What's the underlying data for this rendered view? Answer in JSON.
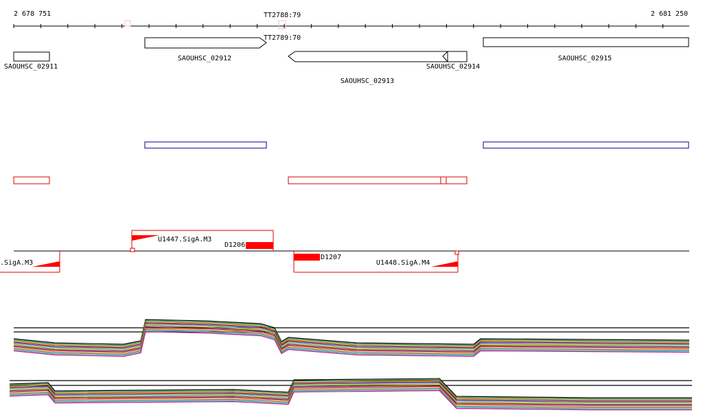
{
  "ruler": {
    "start": "2 678 751",
    "end": "2 681 250",
    "markers": [
      "TT2788:79",
      "TT2789:70"
    ]
  },
  "genes": [
    {
      "label": "SAOUHSC_02911"
    },
    {
      "label": "SAOUHSC_02912"
    },
    {
      "label": "SAOUHSC_02913"
    },
    {
      "label": "SAOUHSC_02914"
    },
    {
      "label": "SAOUHSC_02915"
    }
  ],
  "features": [
    {
      "label": ".SigA.M3"
    },
    {
      "label": "U1447.SigA.M3"
    },
    {
      "label": "D1206"
    },
    {
      "label": "D1207"
    },
    {
      "label": "U1448.SigA.M4"
    }
  ]
}
